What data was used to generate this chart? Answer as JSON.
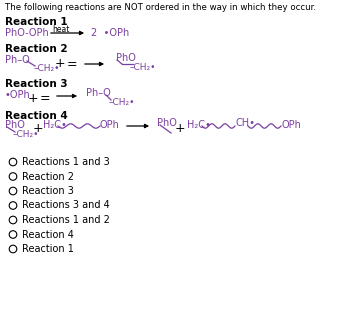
{
  "title": "The following reactions are NOT ordered in the way in which they occur.",
  "bg_color": "#ffffff",
  "text_color": "#000000",
  "bold_label_color": "#000000",
  "chem_color": "#7b3fa0",
  "arrow_color": "#000000",
  "options": [
    "Reactions 1 and 3",
    "Reaction 2",
    "Reaction 3",
    "Reactions 3 and 4",
    "Reactions 1 and 2",
    "Reaction 4",
    "Reaction 1"
  ],
  "figsize": [
    3.5,
    3.19
  ],
  "dpi": 100
}
